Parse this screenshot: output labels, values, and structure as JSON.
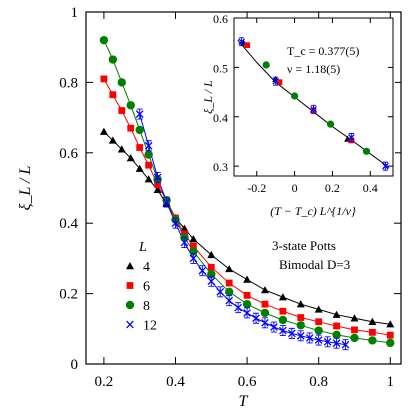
{
  "chart_data": [
    {
      "type": "line",
      "xlabel": "T",
      "ylabel": "ξ_L / L",
      "xlim": [
        0.15,
        1.03
      ],
      "ylim": [
        0,
        1.0
      ],
      "xticks": [
        0.2,
        0.4,
        0.6,
        0.8,
        1
      ],
      "xtick_labels": [
        "0.2",
        "0.4",
        "0.6",
        "0.8",
        "1"
      ],
      "yticks": [
        0,
        0.2,
        0.4,
        0.6,
        0.8,
        1
      ],
      "ytick_labels": [
        "0",
        "0.2",
        "0.4",
        "0.6",
        "0.8",
        "1"
      ],
      "grid": false,
      "legend_title": "L",
      "legend_position": "lower-left",
      "annotation_lines": [
        "3-state Potts",
        "Bimodal D=3"
      ],
      "series": [
        {
          "name": "4",
          "color": "#000000",
          "marker": "triangle",
          "x": [
            0.2,
            0.225,
            0.25,
            0.275,
            0.3,
            0.325,
            0.35,
            0.375,
            0.4,
            0.425,
            0.45,
            0.5,
            0.55,
            0.6,
            0.65,
            0.7,
            0.75,
            0.8,
            0.85,
            0.9,
            0.95,
            1.0
          ],
          "y": [
            0.66,
            0.635,
            0.61,
            0.585,
            0.555,
            0.525,
            0.495,
            0.455,
            0.415,
            0.385,
            0.355,
            0.31,
            0.27,
            0.24,
            0.21,
            0.19,
            0.17,
            0.155,
            0.14,
            0.13,
            0.12,
            0.113
          ]
        },
        {
          "name": "6",
          "color": "#ff0000",
          "marker": "square",
          "x": [
            0.2,
            0.225,
            0.25,
            0.275,
            0.3,
            0.325,
            0.35,
            0.375,
            0.4,
            0.425,
            0.45,
            0.5,
            0.55,
            0.6,
            0.65,
            0.7,
            0.75,
            0.8,
            0.85,
            0.9,
            0.95,
            1.0
          ],
          "y": [
            0.81,
            0.765,
            0.72,
            0.67,
            0.615,
            0.565,
            0.51,
            0.465,
            0.415,
            0.37,
            0.335,
            0.275,
            0.23,
            0.195,
            0.17,
            0.15,
            0.132,
            0.12,
            0.108,
            0.097,
            0.09,
            0.082
          ]
        },
        {
          "name": "8",
          "color": "#008000",
          "marker": "circle",
          "x": [
            0.2,
            0.225,
            0.25,
            0.275,
            0.3,
            0.325,
            0.35,
            0.375,
            0.4,
            0.425,
            0.45,
            0.5,
            0.55,
            0.6,
            0.65,
            0.7,
            0.75,
            0.8,
            0.85,
            0.9,
            0.95,
            1.0
          ],
          "y": [
            0.92,
            0.865,
            0.8,
            0.735,
            0.665,
            0.595,
            0.525,
            0.465,
            0.41,
            0.36,
            0.32,
            0.255,
            0.205,
            0.17,
            0.145,
            0.125,
            0.11,
            0.095,
            0.083,
            0.074,
            0.067,
            0.06
          ]
        },
        {
          "name": "12",
          "color": "#0000ff",
          "marker": "cross",
          "x": [
            0.3,
            0.325,
            0.35,
            0.375,
            0.4,
            0.425,
            0.45,
            0.475,
            0.5,
            0.525,
            0.55,
            0.575,
            0.6,
            0.625,
            0.65,
            0.675,
            0.7,
            0.725,
            0.75,
            0.775,
            0.8,
            0.825,
            0.85,
            0.875
          ],
          "y": [
            0.71,
            0.62,
            0.53,
            0.46,
            0.4,
            0.345,
            0.3,
            0.265,
            0.235,
            0.205,
            0.18,
            0.16,
            0.145,
            0.13,
            0.117,
            0.105,
            0.095,
            0.087,
            0.08,
            0.074,
            0.068,
            0.063,
            0.059,
            0.055
          ]
        }
      ]
    },
    {
      "type": "scatter",
      "inset": true,
      "xlabel": "(T − T_c) L^{1/ν}",
      "ylabel": "ξ_L / L",
      "xlim": [
        -0.32,
        0.52
      ],
      "ylim": [
        0.28,
        0.6
      ],
      "xticks": [
        -0.2,
        0,
        0.2,
        0.4
      ],
      "xtick_labels": [
        "-0.2",
        "0",
        "0.2",
        "0.4"
      ],
      "yticks": [
        0.3,
        0.4,
        0.5,
        0.6
      ],
      "ytick_labels": [
        "0.3",
        "0.4",
        "0.5",
        "0.6"
      ],
      "annotation_lines": [
        "T_c = 0.377(5)",
        "ν = 1.18(5)"
      ],
      "curve": {
        "x": [
          -0.3,
          -0.2,
          -0.1,
          0,
          0.1,
          0.2,
          0.3,
          0.4,
          0.5
        ],
        "y": [
          0.555,
          0.51,
          0.47,
          0.44,
          0.41,
          0.38,
          0.353,
          0.325,
          0.297
        ]
      },
      "series": [
        {
          "name": "4",
          "color": "#000000",
          "marker": "triangle",
          "x": [
            -0.27,
            -0.1,
            0.1,
            0.28
          ],
          "y": [
            0.55,
            0.476,
            0.414,
            0.355
          ]
        },
        {
          "name": "6",
          "color": "#ff0000",
          "marker": "square",
          "x": [
            -0.25,
            -0.08,
            0.1,
            0.3
          ],
          "y": [
            0.545,
            0.47,
            0.412,
            0.352
          ]
        },
        {
          "name": "8",
          "color": "#008000",
          "marker": "circle",
          "x": [
            -0.15,
            0,
            0.19,
            0.38
          ],
          "y": [
            0.505,
            0.442,
            0.385,
            0.33
          ]
        },
        {
          "name": "12",
          "color": "#0000ff",
          "marker": "cross",
          "x": [
            -0.28,
            -0.1,
            0.1,
            0.3,
            0.48
          ],
          "y": [
            0.552,
            0.472,
            0.415,
            0.358,
            0.3
          ]
        }
      ]
    }
  ]
}
